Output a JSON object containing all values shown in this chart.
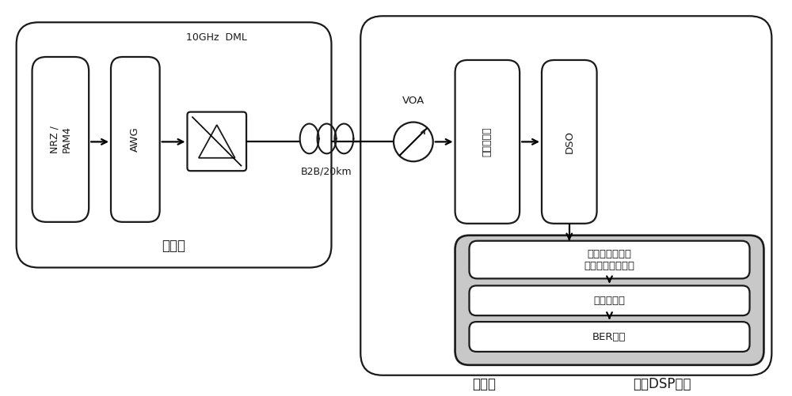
{
  "bg_color": "#ffffff",
  "line_color": "#1a1a1a",
  "box_fill": "#ffffff",
  "gray_fill": "#c8c8c8",
  "transmitter_label": "发送端",
  "receiver_label": "接收端",
  "dsp_label": "离线DSP模块",
  "nrz_label": "NRZ /\nPAM4",
  "awg_label": "AWG",
  "dml_label": "10GHz  DML",
  "b2b_label": "B2B/20km",
  "voa_label": "VOA",
  "photo_label": "光电探测器",
  "dso_label": "DSO",
  "poly_line1": "基于多项式方法",
  "poly_line2": "重新构建特征序列",
  "linear_label": "线性均衡器",
  "ber_label": "BER计算",
  "figw": 10.0,
  "figh": 5.01,
  "dpi": 100
}
